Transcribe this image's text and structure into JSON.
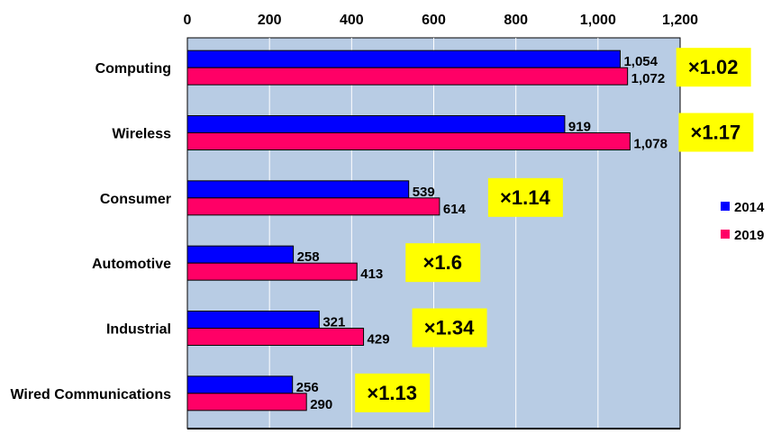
{
  "chart_data": {
    "type": "bar",
    "orientation": "horizontal",
    "title": "",
    "xlabel": "",
    "ylabel": "",
    "xlim": [
      0,
      1200
    ],
    "x_ticks": [
      "0",
      "200",
      "400",
      "600",
      "800",
      "1,000",
      "1,200"
    ],
    "x_tick_values": [
      0,
      200,
      400,
      600,
      800,
      1000,
      1200
    ],
    "grid": true,
    "legend_position": "right",
    "categories": [
      "Computing",
      "Wireless",
      "Consumer",
      "Automotive",
      "Industrial",
      "Wired Communications"
    ],
    "series": [
      {
        "name": "2014",
        "color": "#0000FF",
        "values": [
          1054,
          919,
          539,
          258,
          321,
          256
        ],
        "labels": [
          "1,054",
          "919",
          "539",
          "258",
          "321",
          "256"
        ]
      },
      {
        "name": "2019",
        "color": "#FF0066",
        "values": [
          1072,
          1078,
          614,
          413,
          429,
          290
        ],
        "labels": [
          "1,072",
          "1,078",
          "614",
          "413",
          "429",
          "290"
        ]
      }
    ],
    "annotations": [
      "×1.02",
      "×1.17",
      "×1.14",
      "×1.6",
      "×1.34",
      "×1.13"
    ],
    "plot_background": "#B8CCE4",
    "annotation_background": "#FFFF00"
  }
}
